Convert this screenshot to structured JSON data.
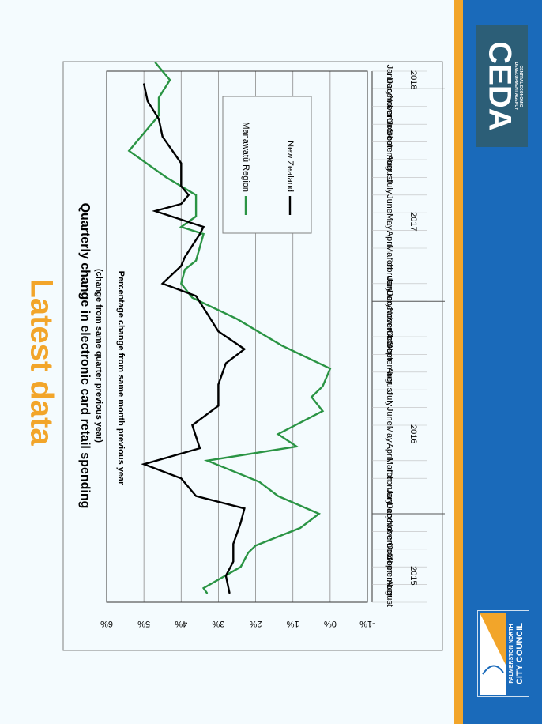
{
  "slide": {
    "title": "Latest data"
  },
  "branding": {
    "ceda_name": "CEDA",
    "ceda_full_line1": "CENTRAL ECONOMIC",
    "ceda_full_line2": "DEVELOPMENT AGENCY",
    "council_line1": "PALMERSTON NORTH",
    "council_line2": "CITY COUNCIL",
    "sidebar_color": "#1a6aba",
    "accent_color": "#f2a52a",
    "ceda_box_color": "#2c5e77"
  },
  "chart_data": {
    "type": "line",
    "title": "Quarterly change in electronic card retail spending",
    "subtitle": "(change from same quarter previous year)",
    "ylabel": "Percentage change from same month previous year",
    "ylim": [
      -1,
      6
    ],
    "yticks": [
      "6%",
      "5%",
      "4%",
      "3%",
      "2%",
      "1%",
      "0%",
      "-1%"
    ],
    "ytick_values": [
      6,
      5,
      4,
      3,
      2,
      1,
      0,
      -1
    ],
    "grid": true,
    "legend_position": "top-right",
    "categories": [
      "August",
      "September",
      "October",
      "November",
      "December",
      "January",
      "February",
      "March",
      "April",
      "May",
      "June",
      "July",
      "August",
      "September",
      "October",
      "November",
      "December",
      "January",
      "February",
      "March",
      "April",
      "May",
      "June",
      "July",
      "August",
      "September",
      "October",
      "November",
      "December",
      "January"
    ],
    "year_labels": [
      {
        "label": "2015",
        "category_index": 1
      },
      {
        "label": "2016",
        "category_index": 9
      },
      {
        "label": "2017",
        "category_index": 21
      },
      {
        "label": "2018",
        "category_index": 29
      }
    ],
    "year_boundaries": [
      4.5,
      16.5,
      28.5
    ],
    "series": [
      {
        "name": "Manawatū Region",
        "color": "#2a9444",
        "points": [
          [
            0,
            3.3
          ],
          [
            0.3,
            3.4
          ],
          [
            1.5,
            2.4
          ],
          [
            2.3,
            2.2
          ],
          [
            2.7,
            2.0
          ],
          [
            3.7,
            0.8
          ],
          [
            4.5,
            0.3
          ],
          [
            5.5,
            1.4
          ],
          [
            6.3,
            1.9
          ],
          [
            7.5,
            3.3
          ],
          [
            8.3,
            0.9
          ],
          [
            9.0,
            1.4
          ],
          [
            10.3,
            0.2
          ],
          [
            11.1,
            0.5
          ],
          [
            11.7,
            0.2
          ],
          [
            12.7,
            0.0
          ],
          [
            14.0,
            1.3
          ],
          [
            15.5,
            2.5
          ],
          [
            16.7,
            3.7
          ],
          [
            17.5,
            4.0
          ],
          [
            18.3,
            3.9
          ],
          [
            18.8,
            3.6
          ],
          [
            20.3,
            3.4
          ],
          [
            20.7,
            4.0
          ],
          [
            21.3,
            3.6
          ],
          [
            22.5,
            3.6
          ],
          [
            23.5,
            4.4
          ],
          [
            25.0,
            5.4
          ],
          [
            25.5,
            5.2
          ],
          [
            27.0,
            4.6
          ],
          [
            28.0,
            4.6
          ],
          [
            29.0,
            4.3
          ],
          [
            30.0,
            4.7
          ]
        ]
      },
      {
        "name": "New Zealand",
        "color": "#000000",
        "points": [
          [
            0,
            2.7
          ],
          [
            1.0,
            2.8
          ],
          [
            1.8,
            2.6
          ],
          [
            2.8,
            2.6
          ],
          [
            4.0,
            2.4
          ],
          [
            4.8,
            2.3
          ],
          [
            5.5,
            3.6
          ],
          [
            6.5,
            4.0
          ],
          [
            7.3,
            5.0
          ],
          [
            8.2,
            3.5
          ],
          [
            9.5,
            3.7
          ],
          [
            10.6,
            3.0
          ],
          [
            11.8,
            3.0
          ],
          [
            13.0,
            2.8
          ],
          [
            13.8,
            2.3
          ],
          [
            14.8,
            3.0
          ],
          [
            15.8,
            3.3
          ],
          [
            16.8,
            3.6
          ],
          [
            17.5,
            4.5
          ],
          [
            18.5,
            4.0
          ],
          [
            19.0,
            3.9
          ],
          [
            20.3,
            3.5
          ],
          [
            20.7,
            3.4
          ],
          [
            21.6,
            4.7
          ],
          [
            22.0,
            4.0
          ],
          [
            22.5,
            3.8
          ],
          [
            23.0,
            4.0
          ],
          [
            24.3,
            4.0
          ],
          [
            25.8,
            4.5
          ],
          [
            26.8,
            4.6
          ],
          [
            27.8,
            4.9
          ],
          [
            28.8,
            5.0
          ]
        ]
      }
    ]
  }
}
